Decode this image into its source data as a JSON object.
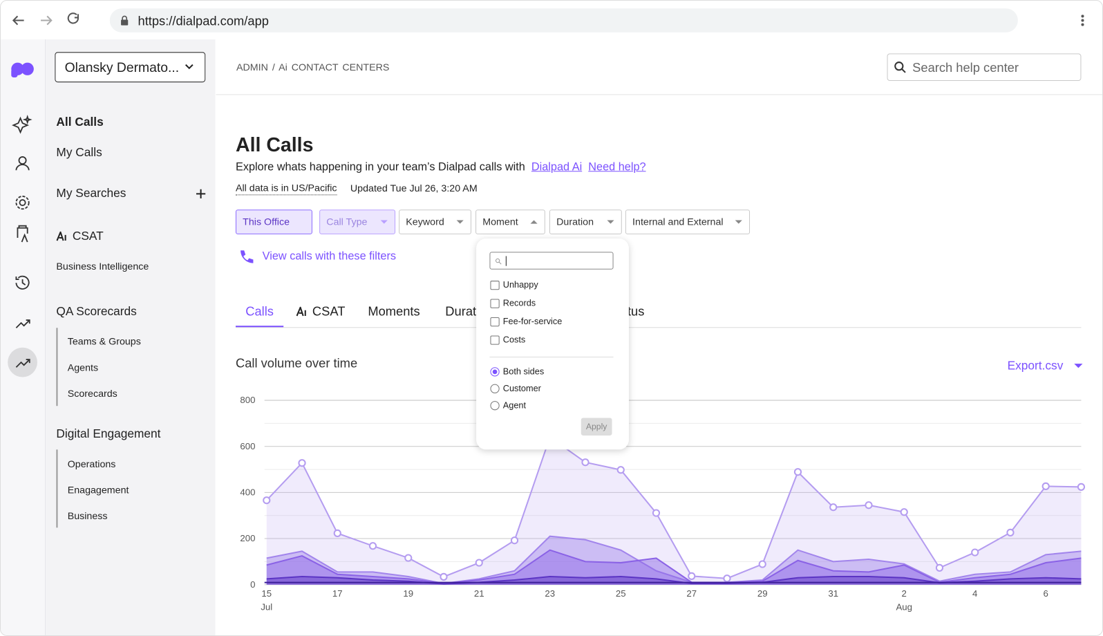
{
  "browser": {
    "url": "https://dialpad.com/app"
  },
  "sidebar": {
    "office": "Olansky Dermato...",
    "nav": [
      "All Calls",
      "My Calls"
    ],
    "my_searches": "My Searches",
    "csat": "CSAT",
    "business_intelligence": "Business Intelligence",
    "qa": {
      "title": "QA Scorecards",
      "items": [
        "Teams & Groups",
        "Agents",
        "Scorecards"
      ]
    },
    "digital": {
      "title": "Digital Engagement",
      "items": [
        "Operations",
        "Enagagement",
        "Business"
      ]
    }
  },
  "header": {
    "breadcrumb": [
      "ADMIN",
      "/",
      "Ai CONTACT CENTERS"
    ],
    "search_placeholder": "Search help center"
  },
  "page": {
    "title": "All Calls",
    "description": "Explore whats happening in your team’s Dialpad calls with",
    "links": [
      "Dialpad Ai",
      "Need help?"
    ],
    "timezone": "All data is in US/Pacific",
    "updated": "Updated Tue Jul 26, 3:20 AM",
    "filters": [
      "This Office",
      "Call Type",
      "Keyword",
      "Moment",
      "Duration",
      "Internal and External"
    ],
    "view_calls": "View calls with these filters",
    "tabs": [
      "Calls",
      "CSAT",
      "Moments",
      "Duration",
      "Status"
    ],
    "export": "Export.csv"
  },
  "moment_dropdown": {
    "checkboxes": [
      "Unhappy",
      "Records",
      "Fee-for-service",
      "Costs"
    ],
    "radios": [
      "Both sides",
      "Customer",
      "Agent"
    ],
    "selected_radio": "Both sides",
    "apply": "Apply"
  },
  "chart_data": {
    "type": "area",
    "title": "Call volume over time",
    "categories": [
      "15",
      null,
      "17",
      null,
      "19",
      null,
      "21",
      null,
      "23",
      null,
      "25",
      null,
      "27",
      null,
      "29",
      null,
      "31",
      null,
      "2",
      null,
      "4",
      null,
      "6",
      null
    ],
    "category_months": [
      "Jul",
      null,
      null,
      null,
      null,
      null,
      null,
      null,
      null,
      null,
      null,
      null,
      null,
      null,
      null,
      null,
      null,
      null,
      "Aug",
      null,
      null,
      null,
      null,
      null
    ],
    "series": [
      {
        "color": "#b49cf0",
        "markers": true,
        "values": [
          366,
          528,
          223,
          168,
          116,
          34,
          95,
          192,
          640,
          531,
          498,
          311,
          37,
          27,
          89,
          489,
          336,
          345,
          315,
          73,
          140,
          226,
          427,
          424
        ]
      },
      {
        "color": "#a285ec",
        "values": [
          115,
          145,
          55,
          55,
          35,
          5,
          25,
          60,
          210,
          195,
          150,
          60,
          10,
          10,
          20,
          150,
          100,
          110,
          90,
          15,
          45,
          55,
          130,
          145
        ]
      },
      {
        "color": "#8a62e6",
        "values": [
          85,
          125,
          45,
          35,
          25,
          5,
          20,
          45,
          150,
          100,
          95,
          115,
          10,
          8,
          15,
          105,
          60,
          55,
          85,
          10,
          30,
          45,
          95,
          115
        ]
      },
      {
        "color": "#5b34c4",
        "values": [
          25,
          35,
          30,
          20,
          15,
          3,
          10,
          20,
          35,
          30,
          35,
          25,
          5,
          5,
          10,
          30,
          35,
          35,
          30,
          8,
          15,
          25,
          30,
          25
        ]
      }
    ],
    "ylim": [
      0,
      800
    ],
    "yticks": [
      0,
      200,
      400,
      600,
      800
    ],
    "minor_yticks": [
      100,
      300,
      500,
      700
    ],
    "grid": true
  }
}
